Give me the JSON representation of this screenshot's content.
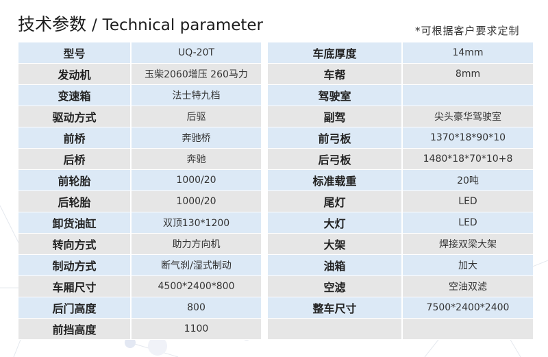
{
  "header": {
    "title_cn": "技术参数",
    "separator": "/",
    "title_en": "Technical parameter",
    "note": "*可根据客户要求定制"
  },
  "left_table": [
    {
      "key": "型号",
      "value": "UQ-20T"
    },
    {
      "key": "发动机",
      "value": "玉柴2060增压  260马力"
    },
    {
      "key": "变速箱",
      "value": "法士特九档"
    },
    {
      "key": "驱动方式",
      "value": "后驱"
    },
    {
      "key": "前桥",
      "value": "奔驰桥"
    },
    {
      "key": "后桥",
      "value": "奔驰"
    },
    {
      "key": "前轮胎",
      "value": "1000/20"
    },
    {
      "key": "后轮胎",
      "value": "1000/20"
    },
    {
      "key": "卸货油缸",
      "value": "双顶130*1200"
    },
    {
      "key": "转向方式",
      "value": "助力方向机"
    },
    {
      "key": "制动方式",
      "value": "断气刹/湿式制动"
    },
    {
      "key": "车厢尺寸",
      "value": "4500*2400*800"
    },
    {
      "key": "后门高度",
      "value": "800"
    },
    {
      "key": "前挡高度",
      "value": "1100"
    }
  ],
  "right_table": [
    {
      "key": "车底厚度",
      "value": "14mm"
    },
    {
      "key": "车帮",
      "value": "8mm"
    },
    {
      "key": "驾驶室",
      "value": ""
    },
    {
      "key": "副驾",
      "value": "尖头豪华驾驶室"
    },
    {
      "key": "前弓板",
      "value": "1370*18*90*10"
    },
    {
      "key": "后弓板",
      "value": "1480*18*70*10+8"
    },
    {
      "key": "标准载重",
      "value": "20吨"
    },
    {
      "key": "尾灯",
      "value": "LED"
    },
    {
      "key": "大灯",
      "value": "LED"
    },
    {
      "key": "大架",
      "value": "焊接双梁大架"
    },
    {
      "key": "油箱",
      "value": "加大"
    },
    {
      "key": "空滤",
      "value": "空油双滤"
    },
    {
      "key": "整车尺寸",
      "value": "7500*2400*2400"
    },
    {
      "key": "",
      "value": ""
    }
  ],
  "colors": {
    "row_blue": "#dce9f6",
    "row_gray": "#e6e6e6"
  }
}
